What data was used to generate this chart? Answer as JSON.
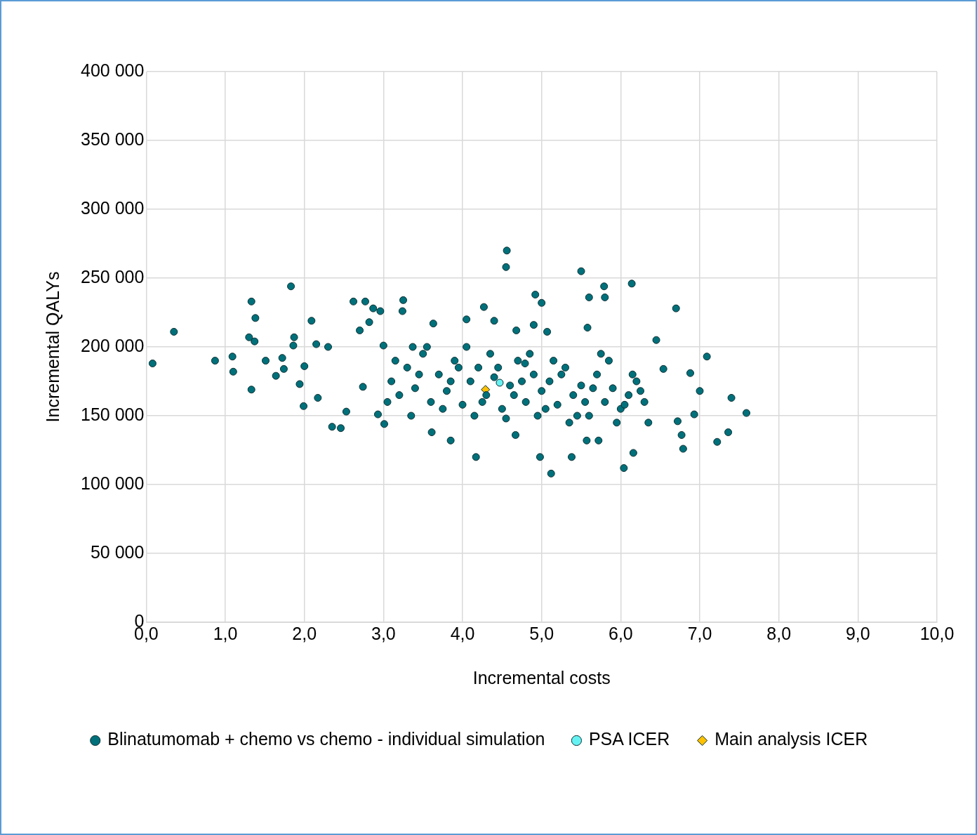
{
  "chart_data": {
    "type": "scatter",
    "xlabel": "Incremental costs",
    "ylabel": "Incremental QALYs",
    "xlim": [
      0,
      10
    ],
    "ylim": [
      0,
      400000
    ],
    "xticks": [
      {
        "value": 0,
        "label": "0,0"
      },
      {
        "value": 1,
        "label": "1,0"
      },
      {
        "value": 2,
        "label": "2,0"
      },
      {
        "value": 3,
        "label": "3,0"
      },
      {
        "value": 4,
        "label": "4,0"
      },
      {
        "value": 5,
        "label": "5,0"
      },
      {
        "value": 6,
        "label": "6,0"
      },
      {
        "value": 7,
        "label": "7,0"
      },
      {
        "value": 8,
        "label": "8,0"
      },
      {
        "value": 9,
        "label": "9,0"
      },
      {
        "value": 10,
        "label": "10,0"
      }
    ],
    "yticks": [
      {
        "value": 0,
        "label": "0"
      },
      {
        "value": 50000,
        "label": "50 000"
      },
      {
        "value": 100000,
        "label": "100 000"
      },
      {
        "value": 150000,
        "label": "150 000"
      },
      {
        "value": 200000,
        "label": "200 000"
      },
      {
        "value": 250000,
        "label": "250 000"
      },
      {
        "value": 300000,
        "label": "300 000"
      },
      {
        "value": 350000,
        "label": "350 000"
      },
      {
        "value": 400000,
        "label": "400 000"
      }
    ],
    "grid": true,
    "legend": "bottom",
    "series": [
      {
        "name": "Blinatumomab + chemo vs chemo - individual simulation",
        "color": "#00707a",
        "marker": "circle",
        "x": [
          0.08,
          0.35,
          0.87,
          1.09,
          1.1,
          1.33,
          1.38,
          1.3,
          1.37,
          1.33,
          1.51,
          1.64,
          1.72,
          1.74,
          1.83,
          1.87,
          1.86,
          1.94,
          1.99,
          2.0,
          2.09,
          2.15,
          2.17,
          2.3,
          2.35,
          2.46,
          2.53,
          2.62,
          2.77,
          2.87,
          2.7,
          2.82,
          2.74,
          2.93,
          3.01,
          2.96,
          3.24,
          3.25,
          3.0,
          3.37,
          3.63,
          4.05,
          4.27,
          4.56,
          4.55,
          5.5,
          5.79,
          6.14,
          5.8,
          5.6,
          5.58,
          6.7,
          7.09,
          7.4,
          7.59,
          7.36,
          7.22,
          7.0,
          6.93,
          6.77,
          6.79,
          6.88,
          6.72,
          6.54,
          6.45,
          6.04,
          6.16,
          5.12,
          4.98,
          4.17,
          3.61,
          3.85,
          4.67,
          5.38,
          5.57,
          5.72,
          4.79,
          5.07,
          4.9,
          5.0,
          4.92,
          4.4,
          4.68,
          3.1,
          3.2,
          3.3,
          3.4,
          3.5,
          3.6,
          3.7,
          3.8,
          3.9,
          4.0,
          4.1,
          4.2,
          4.3,
          4.4,
          4.5,
          4.6,
          4.7,
          4.8,
          4.9,
          5.0,
          5.1,
          5.2,
          5.3,
          5.4,
          5.5,
          5.6,
          5.7,
          5.8,
          5.9,
          6.0,
          6.1,
          6.2,
          6.3,
          3.15,
          3.35,
          3.55,
          3.75,
          3.95,
          4.15,
          4.35,
          4.55,
          4.75,
          4.95,
          5.15,
          5.35,
          5.55,
          5.75,
          5.95,
          6.15,
          6.35,
          3.05,
          3.45,
          3.85,
          4.05,
          4.25,
          4.45,
          4.65,
          4.85,
          5.05,
          5.25,
          5.45,
          5.65,
          5.85,
          6.05,
          6.25
        ],
        "values": [
          188000,
          211000,
          190000,
          193000,
          182000,
          233000,
          221000,
          207000,
          204000,
          169000,
          190000,
          179000,
          192000,
          184000,
          244000,
          207000,
          201000,
          173000,
          157000,
          186000,
          219000,
          202000,
          163000,
          200000,
          142000,
          141000,
          153000,
          233000,
          233000,
          228000,
          212000,
          218000,
          171000,
          151000,
          144000,
          226000,
          226000,
          234000,
          201000,
          200000,
          217000,
          220000,
          229000,
          270000,
          258000,
          255000,
          244000,
          246000,
          236000,
          236000,
          214000,
          228000,
          193000,
          163000,
          152000,
          138000,
          131000,
          168000,
          151000,
          136000,
          126000,
          181000,
          146000,
          184000,
          205000,
          112000,
          123000,
          108000,
          120000,
          120000,
          138000,
          132000,
          136000,
          120000,
          132000,
          132000,
          188000,
          211000,
          216000,
          232000,
          238000,
          219000,
          212000,
          175000,
          165000,
          185000,
          170000,
          195000,
          160000,
          180000,
          168000,
          190000,
          158000,
          175000,
          185000,
          165000,
          178000,
          155000,
          172000,
          190000,
          160000,
          180000,
          168000,
          175000,
          158000,
          185000,
          165000,
          172000,
          150000,
          180000,
          160000,
          170000,
          155000,
          165000,
          175000,
          160000,
          190000,
          150000,
          200000,
          155000,
          185000,
          150000,
          195000,
          148000,
          175000,
          150000,
          190000,
          145000,
          160000,
          195000,
          145000,
          180000,
          145000,
          160000,
          180000,
          175000,
          200000,
          160000,
          185000,
          165000,
          195000,
          155000,
          180000,
          150000,
          170000,
          190000,
          158000,
          168000
        ]
      },
      {
        "name": "PSA ICER",
        "color": "#66f2f2",
        "marker": "circle",
        "x": [
          4.47
        ],
        "values": [
          174000
        ]
      },
      {
        "name": "Main analysis ICER",
        "color": "#ffc000",
        "marker": "diamond",
        "x": [
          4.29
        ],
        "values": [
          169000
        ]
      }
    ]
  }
}
